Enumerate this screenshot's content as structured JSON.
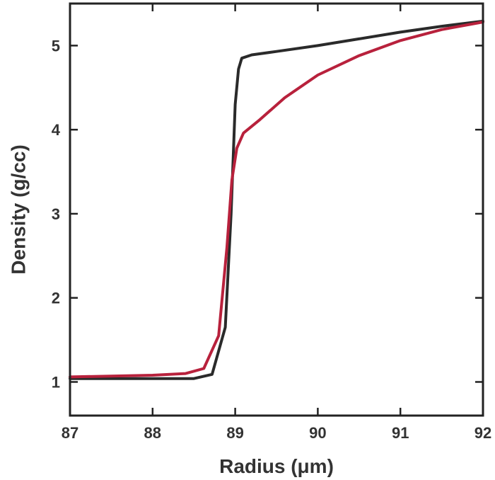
{
  "chart_data": {
    "type": "line",
    "title": "",
    "xlabel": "Radius (μm)",
    "ylabel": "Density (g/cc)",
    "xlim": [
      87,
      92
    ],
    "ylim": [
      0.6,
      5.5
    ],
    "xticks": [
      87,
      88,
      89,
      90,
      91,
      92
    ],
    "yticks": [
      1,
      2,
      3,
      4,
      5
    ],
    "grid": false,
    "legend": "none",
    "series": [
      {
        "color": "#2a2a2a",
        "points": [
          [
            87.0,
            1.04
          ],
          [
            88.0,
            1.04
          ],
          [
            88.5,
            1.04
          ],
          [
            88.72,
            1.09
          ],
          [
            88.88,
            1.65
          ],
          [
            88.95,
            3.0
          ],
          [
            89.0,
            4.3
          ],
          [
            89.04,
            4.72
          ],
          [
            89.08,
            4.85
          ],
          [
            89.2,
            4.89
          ],
          [
            89.5,
            4.93
          ],
          [
            90.0,
            5.0
          ],
          [
            90.5,
            5.08
          ],
          [
            91.0,
            5.16
          ],
          [
            91.5,
            5.23
          ],
          [
            92.0,
            5.29
          ]
        ]
      },
      {
        "color": "#b8213c",
        "points": [
          [
            87.0,
            1.06
          ],
          [
            88.0,
            1.08
          ],
          [
            88.4,
            1.1
          ],
          [
            88.62,
            1.16
          ],
          [
            88.8,
            1.55
          ],
          [
            88.9,
            2.6
          ],
          [
            88.96,
            3.4
          ],
          [
            89.02,
            3.78
          ],
          [
            89.1,
            3.96
          ],
          [
            89.3,
            4.12
          ],
          [
            89.6,
            4.38
          ],
          [
            90.0,
            4.65
          ],
          [
            90.5,
            4.88
          ],
          [
            91.0,
            5.06
          ],
          [
            91.5,
            5.19
          ],
          [
            92.0,
            5.28
          ]
        ]
      }
    ]
  }
}
